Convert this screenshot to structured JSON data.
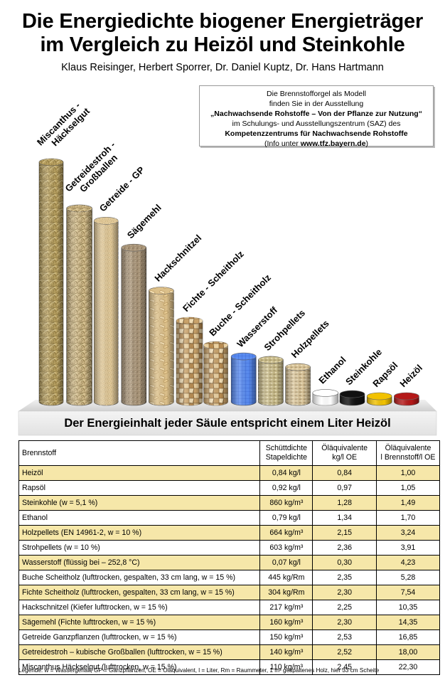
{
  "title_line1": "Die Energiedichte biogener Energieträger",
  "title_line2": "im Vergleich zu Heizöl und Steinkohle",
  "authors": "Klaus Reisinger, Herbert Sporrer, Dr. Daniel Kuptz, Dr. Hans Hartmann",
  "infobox": {
    "line1": "Die Brennstofforgel als Modell",
    "line2": "finden Sie in der Ausstellung",
    "line3": "„Nachwachsende Rohstoffe – Von der Pflanze zur Nutzung“",
    "line4": "im Schulungs- und Ausstellungszentrum (SAZ)  des",
    "line5": "Kompetenzzentrums für Nachwachsende Rohstoffe",
    "line6_prefix": "(Info unter ",
    "line6_url": "www.tfz.bayern.de",
    "line6_suffix": ")"
  },
  "platform_label": "Der Energieinhalt jeder Säule entspricht einem Liter Heizöl",
  "pillars": [
    {
      "label1": "Miscanthus -",
      "label2": "Häckselgut",
      "height_l": 22.3,
      "texture": "straw",
      "color": "#b8a060"
    },
    {
      "label1": "Getreidestroh -",
      "label2": "Großballen",
      "height_l": 18.0,
      "texture": "straw",
      "color": "#cfb888"
    },
    {
      "label1": "Getreide - GP",
      "label2": "",
      "height_l": 16.85,
      "texture": "grain",
      "color": "#e0c898"
    },
    {
      "label1": "Sägemehl",
      "label2": "",
      "height_l": 14.35,
      "texture": "sawdust",
      "color": "#a89478"
    },
    {
      "label1": "Hackschnitzel",
      "label2": "",
      "height_l": 10.35,
      "texture": "chips",
      "color": "#dcc08a"
    },
    {
      "label1": "Fichte - Scheitholz",
      "label2": "",
      "height_l": 7.54,
      "texture": "logs",
      "color": "#d8c090"
    },
    {
      "label1": "Buche - Scheitholz",
      "label2": "",
      "height_l": 5.28,
      "texture": "logs",
      "color": "#b49060"
    },
    {
      "label1": "Wasserstoff",
      "label2": "",
      "height_l": 4.23,
      "texture": "grid",
      "color": "#5a8cf0"
    },
    {
      "label1": "Strohpellets",
      "label2": "",
      "height_l": 3.91,
      "texture": "pellet",
      "color": "#c8bb8a"
    },
    {
      "label1": "Holzpellets",
      "label2": "",
      "height_l": 3.24,
      "texture": "pellet",
      "color": "#d9c49a"
    },
    {
      "label1": "Ethanol",
      "label2": "",
      "height_l": 1.7,
      "texture": "liquid",
      "color": "#ffffff"
    },
    {
      "label1": "Steinkohle",
      "label2": "",
      "height_l": 1.49,
      "texture": "liquid",
      "color": "#111111"
    },
    {
      "label1": "Rapsöl",
      "label2": "",
      "height_l": 1.05,
      "texture": "liquid",
      "color": "#f2c200"
    },
    {
      "label1": "Heizöl",
      "label2": "",
      "height_l": 1.0,
      "texture": "liquid",
      "color": "#b41818"
    }
  ],
  "table": {
    "headers": {
      "fuel": "Brennstoff",
      "density1": "Schüttdichte",
      "density2": "Stapeldichte",
      "oe1": "Öläquivalente",
      "oe2": "kg/l OE",
      "vol1": "Öläquivalente",
      "vol2": "l Brennstoff/l OE"
    },
    "rows": [
      {
        "fuel": "Heizöl",
        "density": "0,84 kg/l",
        "oe": "0,84",
        "vol": "1,00",
        "hl": true
      },
      {
        "fuel": "Rapsöl",
        "density": "0,92 kg/l",
        "oe": "0,97",
        "vol": "1,05",
        "hl": false
      },
      {
        "fuel": "Steinkohle (w = 5,1 %)",
        "density": "860 kg/m³",
        "oe": "1,28",
        "vol": "1,49",
        "hl": true
      },
      {
        "fuel": "Ethanol",
        "density": "0,79 kg/l",
        "oe": "1,34",
        "vol": "1,70",
        "hl": false
      },
      {
        "fuel": "Holzpellets (EN 14961-2, w = 10 %)",
        "density": "664 kg/m³",
        "oe": "2,15",
        "vol": "3,24",
        "hl": true
      },
      {
        "fuel": "Strohpellets (w = 10 %)",
        "density": "603 kg/m³",
        "oe": "2,36",
        "vol": "3,91",
        "hl": false
      },
      {
        "fuel": "Wasserstoff (flüssig bei – 252,8 °C)",
        "density": "0,07 kg/l",
        "oe": "0,30",
        "vol": "4,23",
        "hl": true
      },
      {
        "fuel": "Buche Scheitholz (lufttrocken, gespalten, 33 cm lang, w = 15 %)",
        "density": "445 kg/Rm",
        "oe": "2,35",
        "vol": "5,28",
        "hl": false
      },
      {
        "fuel": "Fichte Scheitholz (lufttrocken, gespalten, 33 cm lang, w = 15 %)",
        "density": "304 kg/Rm",
        "oe": "2,30",
        "vol": "7,54",
        "hl": true
      },
      {
        "fuel": "Hackschnitzel (Kiefer lufttrocken, w = 15 %)",
        "density": "217 kg/m³",
        "oe": "2,25",
        "vol": "10,35",
        "hl": false
      },
      {
        "fuel": "Sägemehl (Fichte lufttrocken, w = 15 %)",
        "density": "160 kg/m³",
        "oe": "2,30",
        "vol": "14,35",
        "hl": true
      },
      {
        "fuel": "Getreide Ganzpflanzen (lufttrocken, w = 15 %)",
        "density": "150 kg/m³",
        "oe": "2,53",
        "vol": "16,85",
        "hl": false
      },
      {
        "fuel": "Getreidestroh – kubische Großballen (lufttrocken, w = 15 %)",
        "density": "140 kg/m³",
        "oe": "2,52",
        "vol": "18,00",
        "hl": true
      },
      {
        "fuel": "Miscanthus Häckselgut (lufttrocken, w = 15 %)",
        "density": "110 kg/m³",
        "oe": "2,45",
        "vol": "22,30",
        "hl": false
      }
    ]
  },
  "legend": "Legende: w = Wassergehalt, GP = Ganzpflanzen, OE = Öläquivalent, l = Liter, Rm = Raummeter, 1 m³ gespaltenes Holz, hier 33 cm Scheite"
}
